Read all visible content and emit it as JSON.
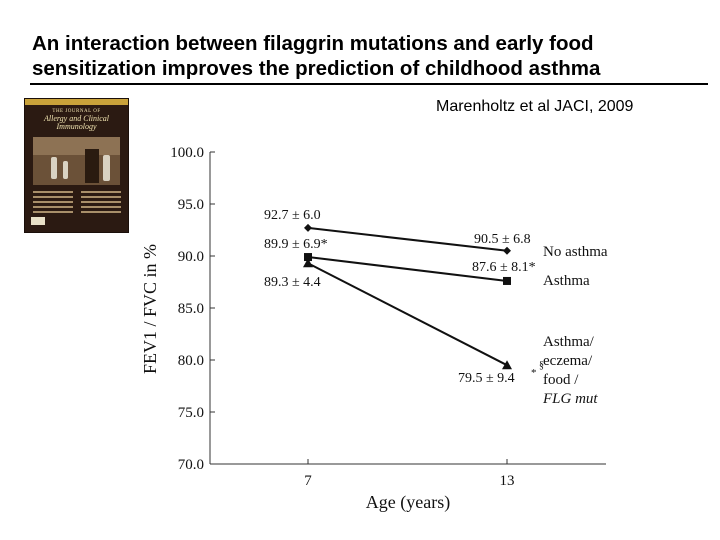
{
  "slide": {
    "title_line1": "An interaction between filaggrin mutations and early food",
    "title_line2": "sensitization improves the prediction of childhood asthma",
    "citation": "Marenholtz et al JACI, 2009"
  },
  "journal_cover": {
    "masthead_top": "THE JOURNAL OF",
    "masthead_main": "Allergy and Clinical",
    "masthead_sub": "Immunology"
  },
  "chart_data": {
    "type": "line",
    "xlabel": "Age (years)",
    "ylabel": "FEV1 / FVC in %",
    "ylim": [
      70.0,
      100.0
    ],
    "yticks": [
      "70.0",
      "75.0",
      "80.0",
      "85.0",
      "90.0",
      "95.0",
      "100.0"
    ],
    "categories": [
      "7",
      "13"
    ],
    "series": [
      {
        "name": "No asthma",
        "marker": "diamond",
        "values": [
          92.7,
          90.5
        ],
        "point_labels": [
          "92.7 ± 6.0",
          "90.5 ± 6.8"
        ]
      },
      {
        "name": "Asthma",
        "marker": "square",
        "values": [
          89.9,
          87.6
        ],
        "point_labels": [
          "89.9 ± 6.9*",
          "87.6 ± 8.1*"
        ]
      },
      {
        "name": "Asthma/ eczema/ food / FLG mut",
        "name_lines": [
          "Asthma/",
          "eczema/",
          "food /",
          "FLG mut"
        ],
        "marker": "triangle",
        "values": [
          89.3,
          79.5
        ],
        "point_labels": [
          "89.3 ± 4.4",
          "79.5 ± 9.4"
        ],
        "end_superscript": "§",
        "end_asterisk": "*"
      }
    ]
  }
}
